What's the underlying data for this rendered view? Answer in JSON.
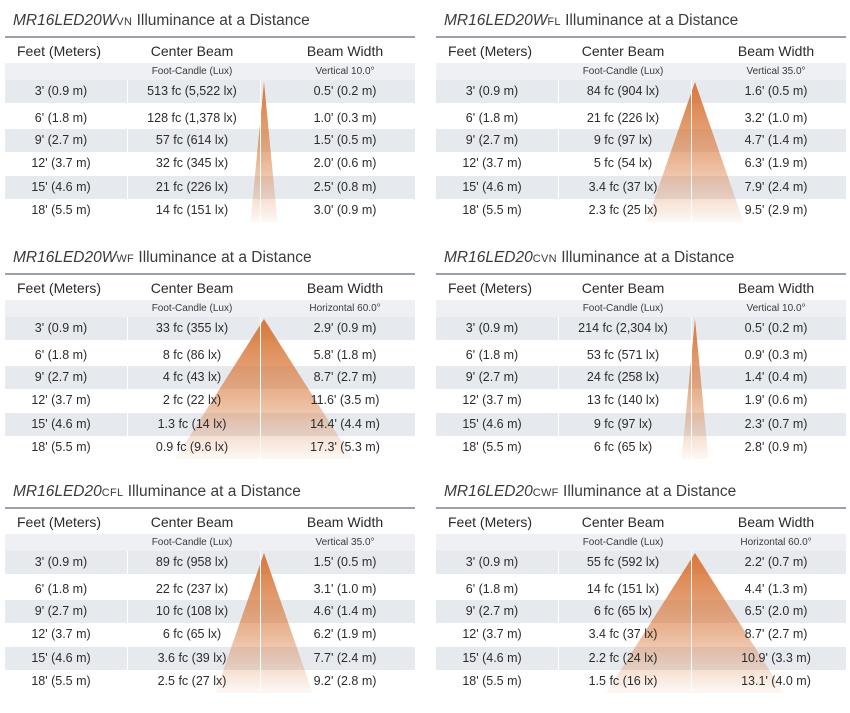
{
  "headers": {
    "feet": "Feet (Meters)",
    "center": "Center Beam",
    "width": "Beam Width",
    "units": "Foot-Candle (Lux)"
  },
  "title_suffix": "Illuminance at a Distance",
  "beam_color": "#d9783a",
  "panels": [
    {
      "model": "MR16LED20W",
      "suffix": "VN",
      "beam_spec": "Vertical 10.0°",
      "spread": 10,
      "rows": [
        {
          "ft": "3' (0.9 m)",
          "cb": "513 fc (5,522 lx)",
          "bw": "0.5' (0.2 m)"
        },
        {
          "ft": "6' (1.8 m)",
          "cb": "128 fc (1,378 lx)",
          "bw": "1.0' (0.3 m)"
        },
        {
          "ft": "9' (2.7 m)",
          "cb": "57 fc (614 lx)",
          "bw": "1.5' (0.5 m)"
        },
        {
          "ft": "12' (3.7 m)",
          "cb": "32 fc (345 lx)",
          "bw": "2.0' (0.6 m)"
        },
        {
          "ft": "15' (4.6 m)",
          "cb": "21 fc (226 lx)",
          "bw": "2.5' (0.8 m)"
        },
        {
          "ft": "18' (5.5 m)",
          "cb": "14 fc (151 lx)",
          "bw": "3.0' (0.9 m)"
        }
      ]
    },
    {
      "model": "MR16LED20W",
      "suffix": "FL",
      "beam_spec": "Vertical 35.0°",
      "spread": 35,
      "rows": [
        {
          "ft": "3' (0.9 m)",
          "cb": "84 fc (904 lx)",
          "bw": "1.6' (0.5 m)"
        },
        {
          "ft": "6' (1.8 m)",
          "cb": "21 fc (226 lx)",
          "bw": "3.2' (1.0 m)"
        },
        {
          "ft": "9' (2.7 m)",
          "cb": "9 fc (97 lx)",
          "bw": "4.7' (1.4 m)"
        },
        {
          "ft": "12' (3.7 m)",
          "cb": "5 fc (54 lx)",
          "bw": "6.3' (1.9 m)"
        },
        {
          "ft": "15' (4.6 m)",
          "cb": "3.4 fc (37 lx)",
          "bw": "7.9' (2.4 m)"
        },
        {
          "ft": "18' (5.5 m)",
          "cb": "2.3 fc (25 lx)",
          "bw": "9.5' (2.9 m)"
        }
      ]
    },
    {
      "model": "MR16LED20W",
      "suffix": "WF",
      "beam_spec": "Horizontal 60.0°",
      "spread": 60,
      "rows": [
        {
          "ft": "3' (0.9 m)",
          "cb": "33 fc (355 lx)",
          "bw": "2.9' (0.9 m)"
        },
        {
          "ft": "6' (1.8 m)",
          "cb": "8 fc (86 lx)",
          "bw": "5.8' (1.8 m)"
        },
        {
          "ft": "9' (2.7 m)",
          "cb": "4 fc (43 lx)",
          "bw": "8.7' (2.7 m)"
        },
        {
          "ft": "12' (3.7 m)",
          "cb": "2 fc (22 lx)",
          "bw": "11.6' (3.5 m)"
        },
        {
          "ft": "15' (4.6 m)",
          "cb": "1.3 fc (14 lx)",
          "bw": "14.4' (4.4 m)"
        },
        {
          "ft": "18' (5.5 m)",
          "cb": "0.9 fc (9.6 lx)",
          "bw": "17.3' (5.3 m)"
        }
      ]
    },
    {
      "model": "MR16LED20",
      "suffix": "CVN",
      "beam_spec": "Vertical 10.0°",
      "spread": 10,
      "rows": [
        {
          "ft": "3' (0.9 m)",
          "cb": "214 fc (2,304 lx)",
          "bw": "0.5' (0.2 m)"
        },
        {
          "ft": "6' (1.8 m)",
          "cb": "53 fc (571 lx)",
          "bw": "0.9' (0.3 m)"
        },
        {
          "ft": "9' (2.7 m)",
          "cb": "24 fc (258 lx)",
          "bw": "1.4' (0.4 m)"
        },
        {
          "ft": "12' (3.7 m)",
          "cb": "13 fc (140 lx)",
          "bw": "1.9' (0.6 m)"
        },
        {
          "ft": "15' (4.6 m)",
          "cb": "9 fc (97 lx)",
          "bw": "2.3' (0.7 m)"
        },
        {
          "ft": "18' (5.5 m)",
          "cb": "6 fc (65 lx)",
          "bw": "2.8' (0.9 m)"
        }
      ]
    },
    {
      "model": "MR16LED20",
      "suffix": "CFL",
      "beam_spec": "Vertical 35.0°",
      "spread": 35,
      "rows": [
        {
          "ft": "3' (0.9 m)",
          "cb": "89 fc (958 lx)",
          "bw": "1.5' (0.5 m)"
        },
        {
          "ft": "6' (1.8 m)",
          "cb": "22 fc (237 lx)",
          "bw": "3.1' (1.0 m)"
        },
        {
          "ft": "9' (2.7 m)",
          "cb": "10 fc (108 lx)",
          "bw": "4.6' (1.4 m)"
        },
        {
          "ft": "12' (3.7 m)",
          "cb": "6 fc (65 lx)",
          "bw": "6.2' (1.9 m)"
        },
        {
          "ft": "15' (4.6 m)",
          "cb": "3.6 fc (39 lx)",
          "bw": "7.7' (2.4 m)"
        },
        {
          "ft": "18' (5.5 m)",
          "cb": "2.5 fc (27 lx)",
          "bw": "9.2' (2.8 m)"
        }
      ]
    },
    {
      "model": "MR16LED20",
      "suffix": "CWF",
      "beam_spec": "Horizontal 60.0°",
      "spread": 60,
      "rows": [
        {
          "ft": "3' (0.9 m)",
          "cb": "55 fc (592 lx)",
          "bw": "2.2' (0.7 m)"
        },
        {
          "ft": "6' (1.8 m)",
          "cb": "14 fc (151 lx)",
          "bw": "4.4' (1.3 m)"
        },
        {
          "ft": "9' (2.7 m)",
          "cb": "6 fc (65 lx)",
          "bw": "6.5' (2.0 m)"
        },
        {
          "ft": "12' (3.7 m)",
          "cb": "3.4 fc (37 lx)",
          "bw": "8.7' (2.7 m)"
        },
        {
          "ft": "15' (4.6 m)",
          "cb": "2.2 fc (24 lx)",
          "bw": "10.9' (3.3 m)"
        },
        {
          "ft": "18' (5.5 m)",
          "cb": "1.5 fc (16 lx)",
          "bw": "13.1' (4.0 m)"
        }
      ]
    }
  ]
}
